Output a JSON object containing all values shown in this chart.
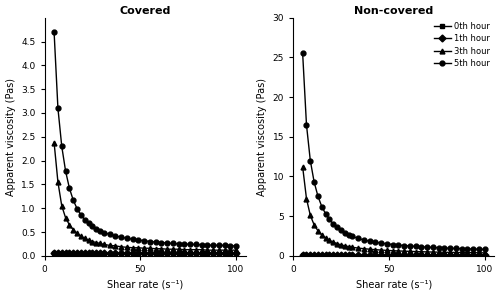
{
  "covered_title": "Covered",
  "noncovered_title": "Non-covered",
  "xlabel": "Shear rate (s⁻¹)",
  "ylabel": "Apparent viscosity (Pas)",
  "legend_labels": [
    "0th hour",
    "1th hour",
    "3th hour",
    "5th hour"
  ],
  "covered_ylim": [
    0,
    5
  ],
  "covered_yticks": [
    0,
    0.5,
    1.0,
    1.5,
    2.0,
    2.5,
    3.0,
    3.5,
    4.0,
    4.5
  ],
  "noncovered_ylim": [
    0,
    30
  ],
  "noncovered_yticks": [
    0,
    5,
    10,
    15,
    20,
    25,
    30
  ],
  "xlim": [
    0,
    105
  ],
  "xticks": [
    0,
    50,
    100
  ],
  "shear_rates": [
    5,
    7,
    9,
    11,
    13,
    15,
    17,
    19,
    21,
    23,
    25,
    27,
    29,
    31,
    34,
    37,
    40,
    43,
    46,
    49,
    52,
    55,
    58,
    61,
    64,
    67,
    70,
    73,
    76,
    79,
    82,
    85,
    88,
    91,
    94,
    97,
    100
  ],
  "covered_0th": [
    0.05,
    0.04,
    0.04,
    0.04,
    0.04,
    0.04,
    0.04,
    0.04,
    0.04,
    0.04,
    0.04,
    0.04,
    0.04,
    0.04,
    0.04,
    0.04,
    0.04,
    0.04,
    0.04,
    0.04,
    0.04,
    0.04,
    0.04,
    0.04,
    0.04,
    0.04,
    0.04,
    0.04,
    0.04,
    0.04,
    0.04,
    0.04,
    0.04,
    0.04,
    0.04,
    0.04,
    0.04
  ],
  "covered_1th": [
    0.06,
    0.06,
    0.06,
    0.05,
    0.05,
    0.05,
    0.05,
    0.05,
    0.05,
    0.05,
    0.05,
    0.05,
    0.05,
    0.05,
    0.05,
    0.05,
    0.05,
    0.05,
    0.05,
    0.05,
    0.05,
    0.05,
    0.05,
    0.05,
    0.05,
    0.05,
    0.05,
    0.05,
    0.05,
    0.05,
    0.05,
    0.05,
    0.05,
    0.05,
    0.05,
    0.05,
    0.05
  ],
  "covered_3th": [
    2.38,
    1.55,
    1.05,
    0.8,
    0.65,
    0.55,
    0.47,
    0.41,
    0.37,
    0.33,
    0.3,
    0.28,
    0.26,
    0.24,
    0.22,
    0.21,
    0.19,
    0.18,
    0.17,
    0.17,
    0.16,
    0.16,
    0.15,
    0.15,
    0.14,
    0.14,
    0.14,
    0.13,
    0.13,
    0.13,
    0.13,
    0.12,
    0.12,
    0.12,
    0.12,
    0.12,
    0.12
  ],
  "covered_5th": [
    4.7,
    3.1,
    2.3,
    1.78,
    1.42,
    1.17,
    0.99,
    0.86,
    0.76,
    0.69,
    0.62,
    0.57,
    0.53,
    0.49,
    0.45,
    0.42,
    0.39,
    0.37,
    0.35,
    0.33,
    0.32,
    0.3,
    0.29,
    0.28,
    0.27,
    0.26,
    0.25,
    0.25,
    0.24,
    0.24,
    0.23,
    0.23,
    0.22,
    0.22,
    0.22,
    0.21,
    0.21
  ],
  "noncovered_0th": [
    0.05,
    0.04,
    0.04,
    0.04,
    0.04,
    0.04,
    0.04,
    0.04,
    0.04,
    0.04,
    0.04,
    0.04,
    0.04,
    0.04,
    0.04,
    0.04,
    0.04,
    0.04,
    0.04,
    0.04,
    0.04,
    0.04,
    0.04,
    0.04,
    0.04,
    0.04,
    0.04,
    0.04,
    0.04,
    0.04,
    0.04,
    0.04,
    0.04,
    0.04,
    0.04,
    0.04,
    0.04
  ],
  "noncovered_1th": [
    0.06,
    0.06,
    0.06,
    0.05,
    0.05,
    0.05,
    0.05,
    0.05,
    0.05,
    0.05,
    0.05,
    0.05,
    0.05,
    0.05,
    0.05,
    0.05,
    0.05,
    0.05,
    0.05,
    0.05,
    0.05,
    0.05,
    0.05,
    0.05,
    0.05,
    0.05,
    0.05,
    0.05,
    0.05,
    0.05,
    0.05,
    0.05,
    0.05,
    0.05,
    0.05,
    0.05,
    0.05
  ],
  "noncovered_3th": [
    11.2,
    7.2,
    5.1,
    3.9,
    3.15,
    2.65,
    2.25,
    1.95,
    1.72,
    1.54,
    1.39,
    1.27,
    1.17,
    1.08,
    0.98,
    0.9,
    0.84,
    0.78,
    0.73,
    0.69,
    0.65,
    0.62,
    0.59,
    0.57,
    0.54,
    0.52,
    0.5,
    0.48,
    0.47,
    0.45,
    0.44,
    0.43,
    0.42,
    0.41,
    0.4,
    0.39,
    0.38
  ],
  "noncovered_5th": [
    25.5,
    16.5,
    12.0,
    9.3,
    7.5,
    6.2,
    5.3,
    4.6,
    4.0,
    3.6,
    3.2,
    2.9,
    2.65,
    2.45,
    2.2,
    2.0,
    1.85,
    1.72,
    1.61,
    1.51,
    1.43,
    1.36,
    1.3,
    1.24,
    1.19,
    1.14,
    1.1,
    1.06,
    1.02,
    0.99,
    0.96,
    0.93,
    0.9,
    0.88,
    0.86,
    0.84,
    0.82
  ],
  "marker_0th": "s",
  "marker_1th": "D",
  "marker_3th": "^",
  "marker_5th": "o",
  "color": "#000000",
  "linewidth": 1.0,
  "markersize": 3.5
}
